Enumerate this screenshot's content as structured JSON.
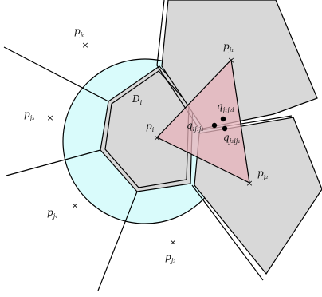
{
  "colors": {
    "disk_fill": "#d9fbfb",
    "cell_fill": "#d8d8d8",
    "triangle_fill": "#e7b3bb",
    "triangle_opacity": "0.75",
    "stroke": "#000000"
  },
  "icons": {
    "site_marker": "×",
    "point_marker": "filled-dot"
  },
  "labels": {
    "d_i": {
      "main": "D",
      "sub": "i"
    },
    "p_i": {
      "main": "p",
      "sub": "i"
    },
    "p_j1": {
      "main": "p",
      "sub": "j₁"
    },
    "p_j2": {
      "main": "p",
      "sub": "j₂"
    },
    "p_j3": {
      "main": "p",
      "sub": "j₃"
    },
    "p_j4": {
      "main": "p",
      "sub": "j₄"
    },
    "p_j5": {
      "main": "p",
      "sub": "j₅"
    },
    "p_j6": {
      "main": "p",
      "sub": "j₆"
    },
    "q_ij1j2": {
      "main": "q",
      "sub": "ij₁j₂"
    },
    "q_j1j2i": {
      "main": "q",
      "sub": "j₁j₂i"
    },
    "q_j2ij1": {
      "main": "q",
      "sub": "j₂ij₁"
    }
  }
}
